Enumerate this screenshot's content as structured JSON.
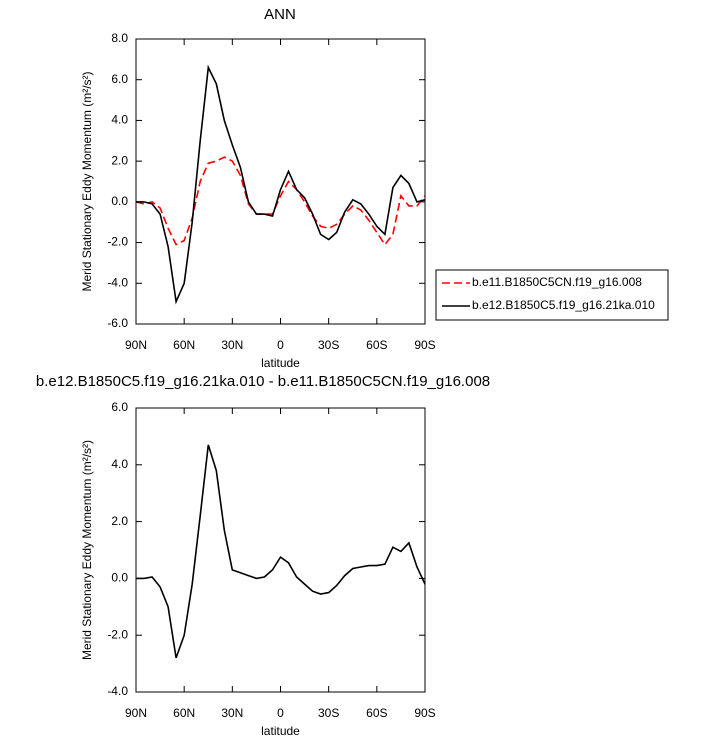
{
  "chart_data": [
    {
      "type": "line",
      "title": "ANN",
      "xlabel": "latitude",
      "ylabel": "Merid Stationary Eddy Momentum (m²/s²)",
      "x": [
        90,
        85,
        80,
        75,
        70,
        65,
        60,
        55,
        50,
        45,
        40,
        35,
        30,
        25,
        20,
        15,
        10,
        5,
        0,
        -5,
        -10,
        -15,
        -20,
        -25,
        -30,
        -35,
        -40,
        -45,
        -50,
        -55,
        -60,
        -65,
        -70,
        -75,
        -80,
        -85,
        -90
      ],
      "xlim": [
        90,
        -90
      ],
      "xticks": [
        {
          "value": 90,
          "label": "90N"
        },
        {
          "value": 60,
          "label": "60N"
        },
        {
          "value": 30,
          "label": "30N"
        },
        0,
        {
          "value": -30,
          "label": "30S"
        },
        {
          "value": -60,
          "label": "60S"
        },
        {
          "value": -90,
          "label": "90S"
        }
      ],
      "ylim": [
        -6,
        8
      ],
      "yticks": [
        {
          "value": -6,
          "label": "-6.0"
        },
        {
          "value": -4,
          "label": "-4.0"
        },
        {
          "value": -2,
          "label": "-2.0"
        },
        {
          "value": 0,
          "label": "0.0"
        },
        {
          "value": 2,
          "label": "2.0"
        },
        {
          "value": 4,
          "label": "4.0"
        },
        {
          "value": 6,
          "label": "6.0"
        },
        {
          "value": 8,
          "label": "8.0"
        }
      ],
      "legend": "outside-right",
      "series": [
        {
          "name": "b.e11.B1850C5CN.f19_g16.008",
          "color": "#ff0000",
          "dash": "dashed",
          "values": [
            0.0,
            -0.1,
            0.0,
            -0.3,
            -1.3,
            -2.1,
            -1.9,
            -0.8,
            1.0,
            1.9,
            2.0,
            2.2,
            2.0,
            1.3,
            -0.1,
            -0.6,
            -0.6,
            -0.6,
            0.3,
            1.0,
            0.6,
            0.0,
            -0.7,
            -1.2,
            -1.3,
            -1.1,
            -0.6,
            -0.2,
            -0.4,
            -0.9,
            -1.5,
            -2.1,
            -1.6,
            0.3,
            -0.2,
            -0.2,
            0.3
          ]
        },
        {
          "name": "b.e12.B1850C5.f19_g16.21ka.010",
          "color": "#000000",
          "dash": "solid",
          "values": [
            0.0,
            0.0,
            -0.1,
            -0.6,
            -2.2,
            -4.9,
            -4.0,
            -1.0,
            3.0,
            6.6,
            5.8,
            4.0,
            2.8,
            1.7,
            0.0,
            -0.6,
            -0.6,
            -0.7,
            0.6,
            1.5,
            0.6,
            0.2,
            -0.6,
            -1.6,
            -1.85,
            -1.5,
            -0.5,
            0.1,
            -0.1,
            -0.6,
            -1.2,
            -1.6,
            0.7,
            1.3,
            0.9,
            0.0,
            0.1
          ]
        }
      ]
    },
    {
      "type": "line",
      "title": "b.e12.B1850C5.f19_g16.21ka.010 - b.e11.B1850C5CN.f19_g16.008",
      "xlabel": "latitude",
      "ylabel": "Merid Stationary Eddy Momentum (m²/s²)",
      "x": [
        90,
        85,
        80,
        75,
        70,
        65,
        60,
        55,
        50,
        45,
        40,
        35,
        30,
        25,
        20,
        15,
        10,
        5,
        0,
        -5,
        -10,
        -15,
        -20,
        -25,
        -30,
        -35,
        -40,
        -45,
        -50,
        -55,
        -60,
        -65,
        -70,
        -75,
        -80,
        -85,
        -90
      ],
      "xlim": [
        90,
        -90
      ],
      "xticks": [
        {
          "value": 90,
          "label": "90N"
        },
        {
          "value": 60,
          "label": "60N"
        },
        {
          "value": 30,
          "label": "30N"
        },
        0,
        {
          "value": -30,
          "label": "30S"
        },
        {
          "value": -60,
          "label": "60S"
        },
        {
          "value": -90,
          "label": "90S"
        }
      ],
      "ylim": [
        -4,
        6
      ],
      "yticks": [
        {
          "value": -4,
          "label": "-4.0"
        },
        {
          "value": -2,
          "label": "-2.0"
        },
        {
          "value": 0,
          "label": "0.0"
        },
        {
          "value": 2,
          "label": "2.0"
        },
        {
          "value": 4,
          "label": "4.0"
        },
        {
          "value": 6,
          "label": "6.0"
        }
      ],
      "series": [
        {
          "color": "#000000",
          "dash": "solid",
          "values": [
            0.0,
            0.0,
            0.05,
            -0.3,
            -1.0,
            -2.8,
            -2.0,
            -0.2,
            2.2,
            4.7,
            3.8,
            1.7,
            0.3,
            0.2,
            0.1,
            0.0,
            0.05,
            0.3,
            0.75,
            0.55,
            0.05,
            -0.2,
            -0.45,
            -0.55,
            -0.5,
            -0.25,
            0.1,
            0.35,
            0.4,
            0.45,
            0.45,
            0.5,
            1.1,
            0.95,
            1.25,
            0.4,
            -0.2
          ]
        }
      ]
    }
  ]
}
